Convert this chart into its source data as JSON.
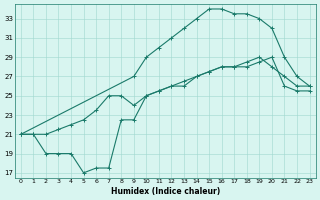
{
  "xlabel": "Humidex (Indice chaleur)",
  "bg_color": "#d8f5f0",
  "grid_color": "#a0d8cf",
  "line_color": "#1a7a6a",
  "xlim": [
    -0.5,
    23.5
  ],
  "ylim": [
    16.5,
    34.5
  ],
  "xticks": [
    0,
    1,
    2,
    3,
    4,
    5,
    6,
    7,
    8,
    9,
    10,
    11,
    12,
    13,
    14,
    15,
    16,
    17,
    18,
    19,
    20,
    21,
    22,
    23
  ],
  "yticks": [
    17,
    19,
    21,
    23,
    25,
    27,
    29,
    31,
    33
  ],
  "line1_x": [
    0,
    1,
    2,
    3,
    4,
    5,
    6,
    7,
    8,
    9,
    10,
    11,
    12,
    13,
    14,
    15,
    16,
    17,
    18,
    19,
    20,
    21,
    22,
    23
  ],
  "line1_y": [
    21,
    21,
    19,
    19,
    19,
    17,
    17.5,
    17.5,
    22.5,
    22.5,
    25,
    25.5,
    26,
    26,
    27,
    27.5,
    28,
    28,
    28,
    28.5,
    29,
    26,
    25.5,
    25.5
  ],
  "line2_x": [
    0,
    9,
    10,
    11,
    12,
    13,
    14,
    15,
    16,
    17,
    18,
    19,
    20,
    21,
    22,
    23
  ],
  "line2_y": [
    21,
    27,
    29,
    30,
    31,
    32,
    33,
    34,
    34,
    33.5,
    33.5,
    33,
    32,
    29,
    27,
    26
  ],
  "line3_x": [
    0,
    1,
    2,
    3,
    4,
    5,
    6,
    7,
    8,
    9,
    10,
    11,
    12,
    13,
    14,
    15,
    16,
    17,
    18,
    19,
    20,
    21,
    22,
    23
  ],
  "line3_y": [
    21,
    21,
    21,
    21.5,
    22,
    22.5,
    23.5,
    25,
    25,
    24,
    25,
    25.5,
    26,
    26.5,
    27,
    27.5,
    28,
    28,
    28.5,
    29,
    28,
    27,
    26,
    26
  ]
}
